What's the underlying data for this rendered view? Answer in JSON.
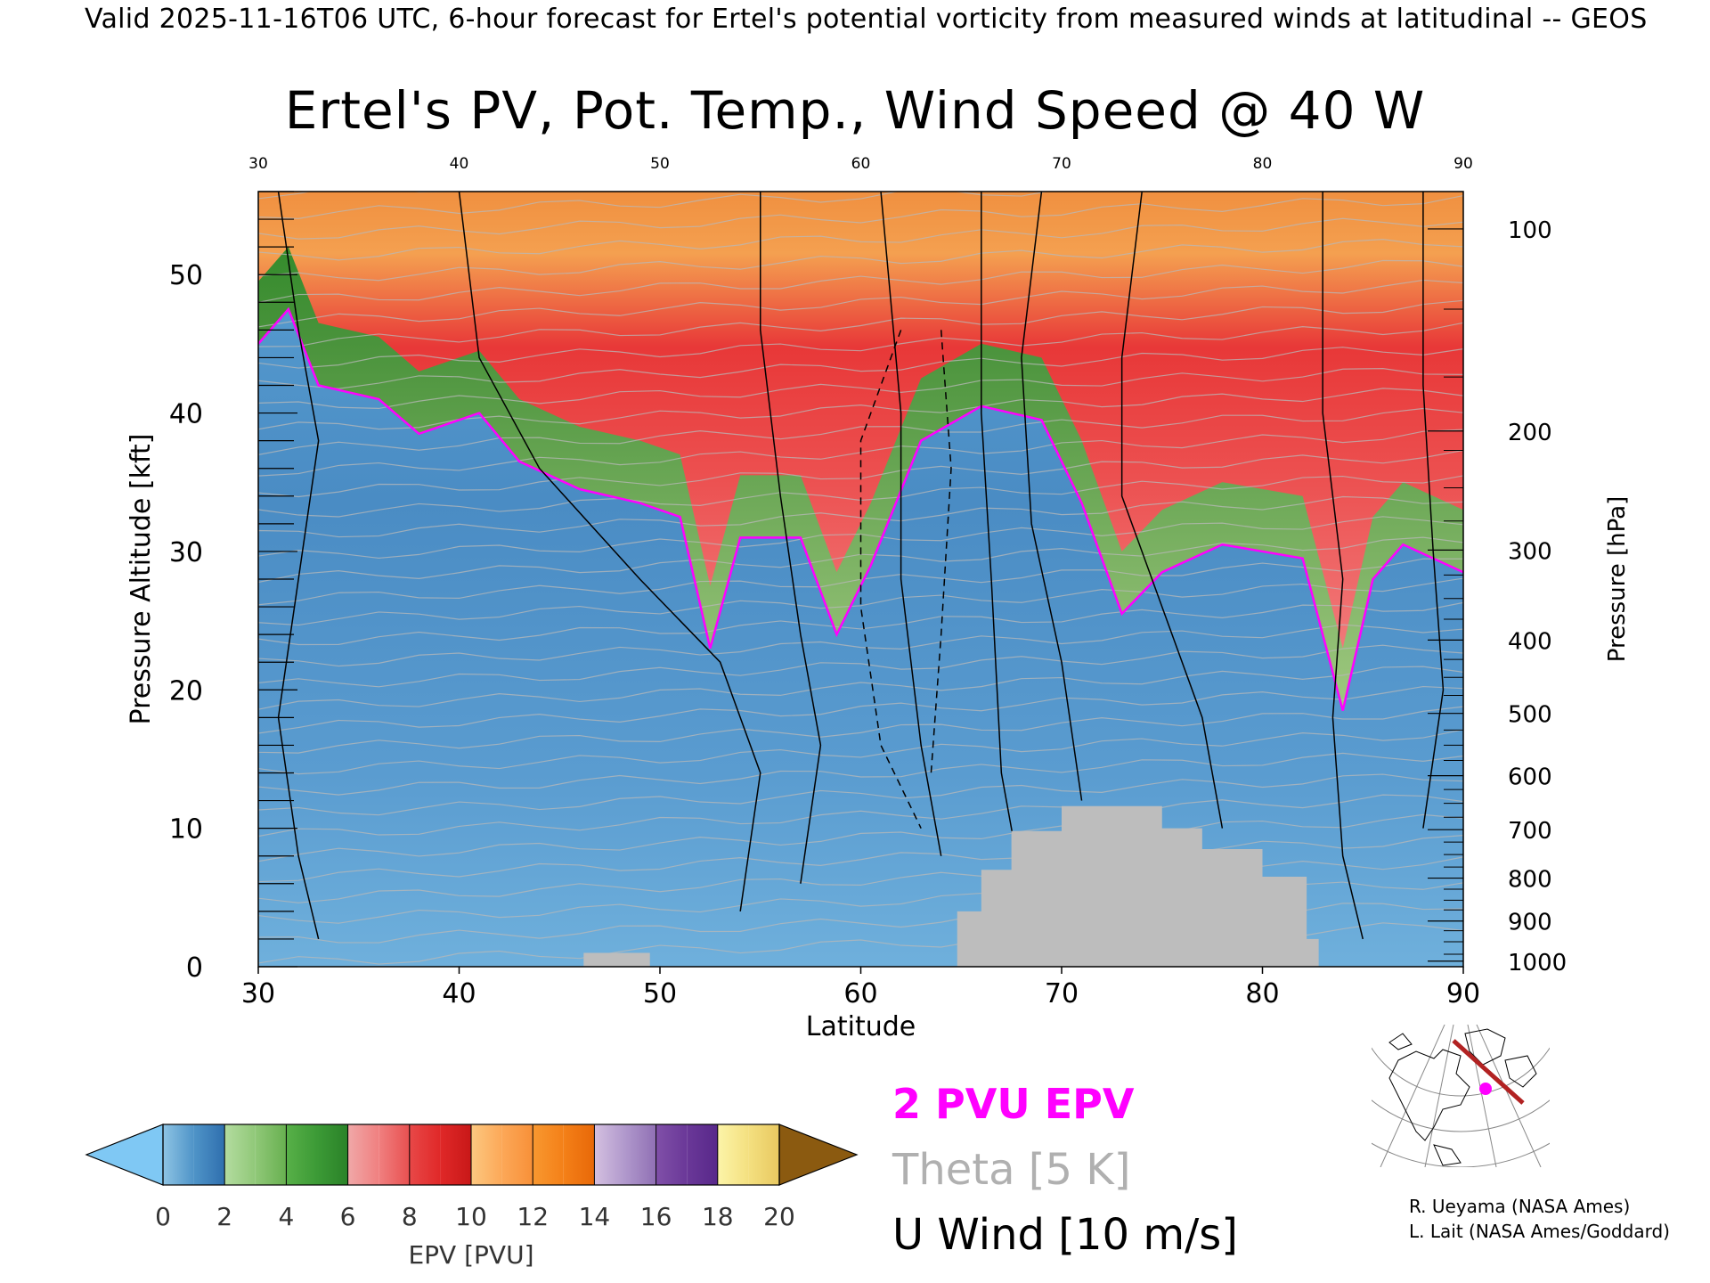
{
  "header": "Valid 2025-11-16T06 UTC, 6-hour forecast for Ertel's potential vorticity from measured winds at latitudinal -- GEOS",
  "chart_data": {
    "type": "heatmap",
    "title": "Ertel's PV, Pot. Temp., Wind Speed @ 40 W",
    "xlabel": "Latitude",
    "ylabel": "Pressure Altitude [kft]",
    "y2label": "Pressure [hPa]",
    "xlim": [
      30,
      90
    ],
    "ylim": [
      0,
      56
    ],
    "x_ticks": [
      30,
      40,
      50,
      60,
      70,
      80,
      90
    ],
    "top_x_ticks": [
      30,
      40,
      50,
      60,
      70,
      80,
      90
    ],
    "y_ticks": [
      0,
      10,
      20,
      30,
      40,
      50
    ],
    "pressure_ticks": [
      {
        "hpa": 1000,
        "kft": 0.4
      },
      {
        "hpa": 900,
        "kft": 3.3
      },
      {
        "hpa": 800,
        "kft": 6.4
      },
      {
        "hpa": 700,
        "kft": 9.9
      },
      {
        "hpa": 600,
        "kft": 13.8
      },
      {
        "hpa": 500,
        "kft": 18.3
      },
      {
        "hpa": 400,
        "kft": 23.6
      },
      {
        "hpa": 300,
        "kft": 30.1
      },
      {
        "hpa": 200,
        "kft": 38.7
      },
      {
        "hpa": 100,
        "kft": 53.3
      }
    ],
    "pv_2pvu_boundary_kft": [
      {
        "lat": 30,
        "kft": 45
      },
      {
        "lat": 31.5,
        "kft": 47.5
      },
      {
        "lat": 33,
        "kft": 42
      },
      {
        "lat": 36,
        "kft": 41
      },
      {
        "lat": 38,
        "kft": 38.5
      },
      {
        "lat": 41,
        "kft": 40
      },
      {
        "lat": 43,
        "kft": 36.5
      },
      {
        "lat": 46,
        "kft": 34.5
      },
      {
        "lat": 49,
        "kft": 33.5
      },
      {
        "lat": 51,
        "kft": 32.5
      },
      {
        "lat": 52.5,
        "kft": 23
      },
      {
        "lat": 54,
        "kft": 31
      },
      {
        "lat": 57,
        "kft": 31
      },
      {
        "lat": 58.8,
        "kft": 24
      },
      {
        "lat": 60.5,
        "kft": 29
      },
      {
        "lat": 63,
        "kft": 38
      },
      {
        "lat": 66,
        "kft": 40.5
      },
      {
        "lat": 69,
        "kft": 39.5
      },
      {
        "lat": 71,
        "kft": 33.5
      },
      {
        "lat": 73,
        "kft": 25.5
      },
      {
        "lat": 75,
        "kft": 28.5
      },
      {
        "lat": 78,
        "kft": 30.5
      },
      {
        "lat": 82,
        "kft": 29.5
      },
      {
        "lat": 84,
        "kft": 18.5
      },
      {
        "lat": 85.5,
        "kft": 28
      },
      {
        "lat": 87,
        "kft": 30.5
      },
      {
        "lat": 90,
        "kft": 28.5
      }
    ],
    "colorbar": {
      "label": "EPV [PVU]",
      "ticks": [
        0,
        2,
        4,
        6,
        8,
        10,
        12,
        14,
        16,
        18,
        20
      ],
      "under_color": "#7fc8f4",
      "over_color": "#8b5a10",
      "bins": [
        {
          "from": 0,
          "to": 1,
          "colors": [
            "#8ec4e4",
            "#4f94c8"
          ]
        },
        {
          "from": 1,
          "to": 2,
          "colors": [
            "#4f94c8",
            "#2f6fae"
          ]
        },
        {
          "from": 2,
          "to": 3,
          "colors": [
            "#b4dca0",
            "#90c878"
          ]
        },
        {
          "from": 3,
          "to": 4,
          "colors": [
            "#90c878",
            "#68b050"
          ]
        },
        {
          "from": 4,
          "to": 5,
          "colors": [
            "#58b048",
            "#3c9a36"
          ]
        },
        {
          "from": 5,
          "to": 6,
          "colors": [
            "#3c9a36",
            "#2a8228"
          ]
        },
        {
          "from": 6,
          "to": 7,
          "colors": [
            "#f0a8a8",
            "#f08080"
          ]
        },
        {
          "from": 7,
          "to": 8,
          "colors": [
            "#f08080",
            "#e85050"
          ]
        },
        {
          "from": 8,
          "to": 9,
          "colors": [
            "#e84848",
            "#e02828"
          ]
        },
        {
          "from": 9,
          "to": 10,
          "colors": [
            "#e02828",
            "#c81818"
          ]
        },
        {
          "from": 10,
          "to": 11,
          "colors": [
            "#fcc880",
            "#fca858"
          ]
        },
        {
          "from": 11,
          "to": 12,
          "colors": [
            "#fca858",
            "#f89038"
          ]
        },
        {
          "from": 12,
          "to": 13,
          "colors": [
            "#f89830",
            "#f48018"
          ]
        },
        {
          "from": 13,
          "to": 14,
          "colors": [
            "#f48018",
            "#e86808"
          ]
        },
        {
          "from": 14,
          "to": 15,
          "colors": [
            "#d4c0e0",
            "#b098cc"
          ]
        },
        {
          "from": 15,
          "to": 16,
          "colors": [
            "#b098cc",
            "#9070b4"
          ]
        },
        {
          "from": 16,
          "to": 17,
          "colors": [
            "#8050a8",
            "#6a3898"
          ]
        },
        {
          "from": 17,
          "to": 18,
          "colors": [
            "#6a3898",
            "#58288a"
          ]
        },
        {
          "from": 18,
          "to": 19,
          "colors": [
            "#fcf4a8",
            "#f4e080"
          ]
        },
        {
          "from": 19,
          "to": 20,
          "colors": [
            "#f4e080",
            "#e8c860"
          ]
        }
      ]
    },
    "legend": [
      "2 PVU EPV",
      "Theta [5 K]",
      "U Wind [10 m/s]"
    ],
    "legend_colors": [
      "#ff00ff",
      "#b0b0b0",
      "#000000"
    ],
    "legend_placement": "bottom-center"
  },
  "credits": [
    "R. Ueyama (NASA Ames)",
    "L. Lait (NASA Ames/Goddard)"
  ]
}
